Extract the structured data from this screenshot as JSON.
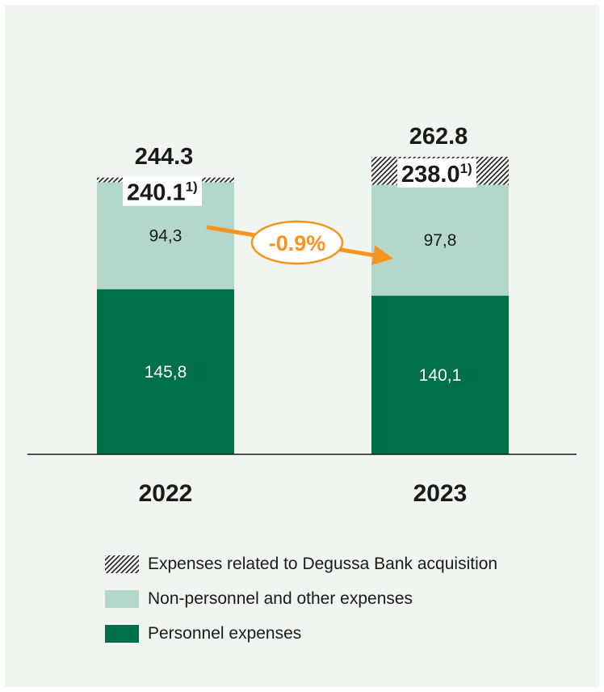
{
  "colors": {
    "personnel": "#00704a",
    "non_personnel": "#b3d7cb",
    "hatch": "#1a1a1a",
    "arrow": "#f7941d",
    "background": "#f1f5f2"
  },
  "chart_data": {
    "type": "bar",
    "stacked": true,
    "categories": [
      "2022",
      "2023"
    ],
    "series": [
      {
        "name": "Personnel expenses",
        "key": "personnel",
        "values": [
          145.8,
          140.1
        ],
        "labels": [
          "145,8",
          "140,1"
        ]
      },
      {
        "name": "Non-personnel and other expenses",
        "key": "non_personnel",
        "values": [
          94.3,
          97.8
        ],
        "labels": [
          "94,3",
          "97,8"
        ]
      },
      {
        "name": "Expenses related to Degussa Bank acquisition",
        "key": "acquisition",
        "values": [
          4.2,
          24.8
        ],
        "labels": [
          "",
          ""
        ]
      }
    ],
    "totals": [
      "244.3",
      "262.8"
    ],
    "adjusted_totals": [
      {
        "value": "240.1",
        "footnote": "1)"
      },
      {
        "value": "238.0",
        "footnote": "1)"
      }
    ],
    "change": {
      "label": "-0.9%"
    },
    "ylim": [
      0,
      270
    ],
    "grid": false,
    "legend_position": "bottom",
    "legend": [
      {
        "label": "Expenses related to Degussa Bank acquisition",
        "icon": "hatch-swatch"
      },
      {
        "label": "Non-personnel and other expenses",
        "icon": "light-green-swatch"
      },
      {
        "label": "Personnel expenses",
        "icon": "dark-green-swatch"
      }
    ]
  }
}
